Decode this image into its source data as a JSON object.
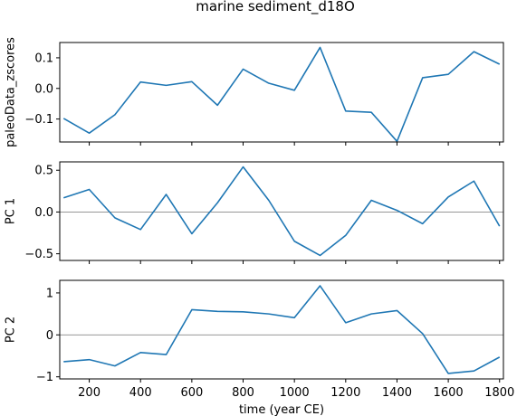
{
  "chart_data": {
    "type": "line",
    "title": "marine sediment_d18O",
    "xlabel": "time (year CE)",
    "xlim": [
      85,
      1815
    ],
    "xticks": [
      200,
      400,
      600,
      800,
      1000,
      1200,
      1400,
      1600,
      1800
    ],
    "color": "#1f77b4",
    "panels": [
      {
        "ylabel": "paleoData_zscores",
        "ylim": [
          -0.175,
          0.15
        ],
        "yticks": [
          -0.1,
          0.0,
          0.1
        ],
        "ytick_labels": [
          "−0.1",
          "0.0",
          "0.1"
        ],
        "zero_line": false,
        "x": [
          100,
          200,
          300,
          400,
          500,
          600,
          700,
          800,
          900,
          1000,
          1100,
          1200,
          1300,
          1400,
          1500,
          1600,
          1700,
          1800
        ],
        "values": [
          -0.098,
          -0.146,
          -0.086,
          0.021,
          0.01,
          0.022,
          -0.055,
          0.063,
          0.017,
          -0.006,
          0.134,
          -0.074,
          -0.078,
          -0.173,
          0.035,
          0.046,
          0.12,
          0.079
        ]
      },
      {
        "ylabel": "PC 1",
        "ylim": [
          -0.58,
          0.6
        ],
        "yticks": [
          -0.5,
          0.0,
          0.5
        ],
        "ytick_labels": [
          "−0.5",
          "0.0",
          "0.5"
        ],
        "zero_line": true,
        "x": [
          100,
          200,
          300,
          400,
          500,
          600,
          700,
          800,
          900,
          1000,
          1100,
          1200,
          1300,
          1400,
          1500,
          1600,
          1700,
          1800
        ],
        "values": [
          0.17,
          0.27,
          -0.07,
          -0.21,
          0.21,
          -0.26,
          0.11,
          0.54,
          0.14,
          -0.35,
          -0.52,
          -0.28,
          0.14,
          0.02,
          -0.14,
          0.18,
          0.37,
          -0.17
        ]
      },
      {
        "ylabel": "PC 2",
        "ylim": [
          -1.05,
          1.3
        ],
        "yticks": [
          -1,
          0,
          1
        ],
        "ytick_labels": [
          "−1",
          "0",
          "1"
        ],
        "zero_line": true,
        "x": [
          100,
          200,
          300,
          400,
          500,
          600,
          700,
          800,
          900,
          1000,
          1100,
          1200,
          1300,
          1400,
          1500,
          1600,
          1700,
          1800
        ],
        "values": [
          -0.64,
          -0.59,
          -0.74,
          -0.42,
          -0.47,
          0.6,
          0.56,
          0.55,
          0.5,
          0.41,
          1.17,
          0.29,
          0.5,
          0.58,
          0.03,
          -0.92,
          -0.86,
          -0.53
        ]
      }
    ]
  }
}
